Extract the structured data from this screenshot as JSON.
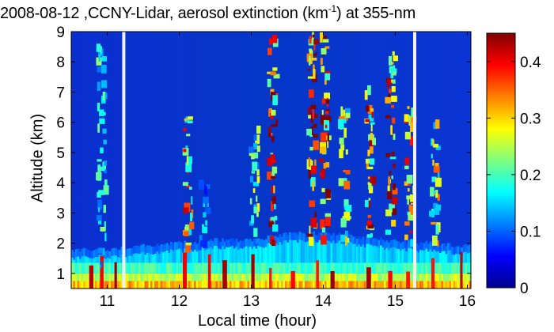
{
  "chart_data": {
    "type": "heatmap",
    "title_main": "2008-08-12 ,CCNY-Lidar, aerosol extinction (km",
    "title_sup": "-1",
    "title_tail": ") at 355-nm",
    "xlabel": "Local time (hour)",
    "ylabel": "Altitude (km)",
    "xlim": [
      10.5,
      16.05
    ],
    "ylim": [
      0.5,
      9
    ],
    "x_ticks": [
      11,
      12,
      13,
      14,
      15,
      16
    ],
    "y_ticks": [
      1,
      2,
      3,
      4,
      5,
      6,
      7,
      8,
      9
    ],
    "colorbar": {
      "range": [
        0,
        0.45
      ],
      "ticks": [
        0,
        0.1,
        0.2,
        0.3,
        0.4
      ],
      "colormap": "jet"
    },
    "boundary_layer_height_km": [
      {
        "x": 10.5,
        "y": 1.75
      },
      {
        "x": 11.0,
        "y": 1.8
      },
      {
        "x": 11.5,
        "y": 1.9
      },
      {
        "x": 12.0,
        "y": 2.0
      },
      {
        "x": 12.5,
        "y": 2.1
      },
      {
        "x": 13.0,
        "y": 2.1
      },
      {
        "x": 13.5,
        "y": 2.3
      },
      {
        "x": 14.0,
        "y": 2.35
      },
      {
        "x": 14.5,
        "y": 2.2
      },
      {
        "x": 15.0,
        "y": 2.05
      },
      {
        "x": 15.5,
        "y": 2.0
      },
      {
        "x": 16.0,
        "y": 1.9
      }
    ],
    "data_gaps_hour": [
      11.23,
      15.27
    ],
    "plumes": [
      {
        "x": 10.93,
        "y_base": 1.2,
        "y_top": 8.5,
        "intensity": 0.2
      },
      {
        "x": 12.13,
        "y_base": 1.8,
        "y_top": 6.3,
        "intensity": 0.35
      },
      {
        "x": 12.35,
        "y_base": 1.9,
        "y_top": 4.0,
        "intensity": 0.15
      },
      {
        "x": 13.05,
        "y_base": 2.0,
        "y_top": 6.0,
        "intensity": 0.25
      },
      {
        "x": 13.3,
        "y_base": 2.0,
        "y_top": 8.8,
        "intensity": 0.4
      },
      {
        "x": 13.85,
        "y_base": 2.0,
        "y_top": 9.0,
        "intensity": 0.45
      },
      {
        "x": 14.02,
        "y_base": 2.0,
        "y_top": 9.0,
        "intensity": 0.42
      },
      {
        "x": 14.3,
        "y_base": 2.0,
        "y_top": 6.5,
        "intensity": 0.3
      },
      {
        "x": 14.65,
        "y_base": 2.0,
        "y_top": 7.2,
        "intensity": 0.38
      },
      {
        "x": 14.95,
        "y_base": 2.0,
        "y_top": 8.3,
        "intensity": 0.42
      },
      {
        "x": 15.2,
        "y_base": 2.0,
        "y_top": 6.5,
        "intensity": 0.35
      },
      {
        "x": 15.55,
        "y_base": 1.8,
        "y_top": 6.0,
        "intensity": 0.3
      }
    ]
  }
}
